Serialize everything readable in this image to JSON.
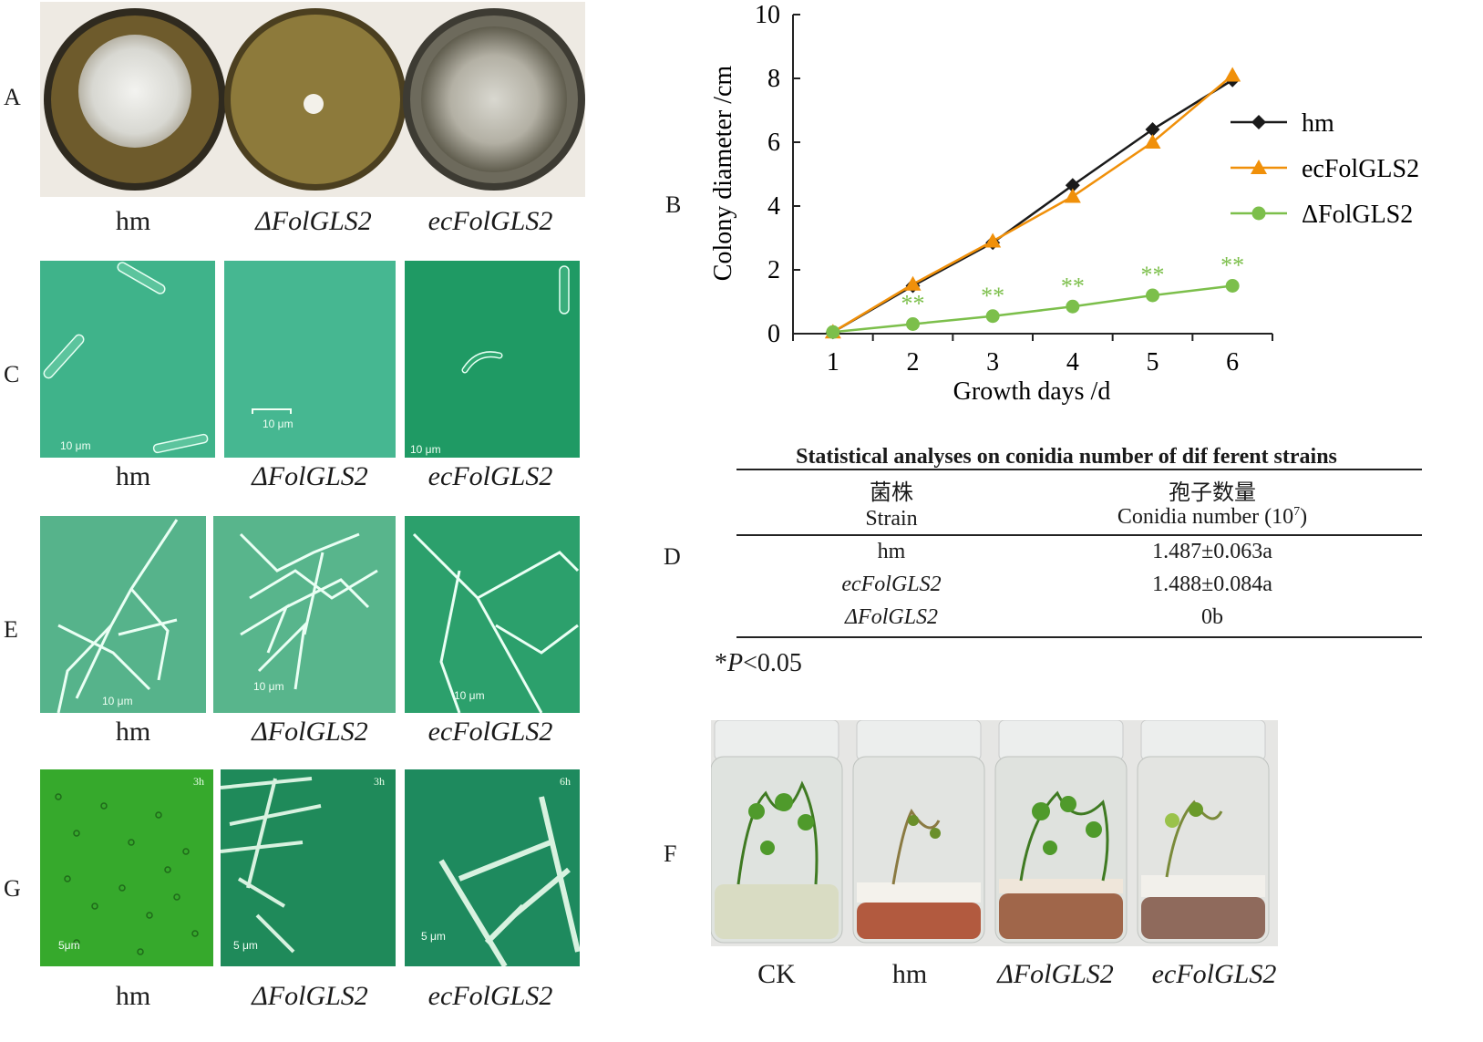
{
  "panel_letters": {
    "a": "A",
    "b": "B",
    "c": "C",
    "d": "D",
    "e": "E",
    "f": "F",
    "g": "G"
  },
  "strains": {
    "hm": "hm",
    "delta": "ΔFolGLS2",
    "ec": "ecFolGLS2",
    "ck": "CK"
  },
  "scale_labels": {
    "ten": "10 μm",
    "five_a": "5μm",
    "five_b": "5 μm",
    "t3h": "3h",
    "t6h": "6h"
  },
  "chart_data": {
    "type": "line",
    "xlabel": "Growth days /d",
    "ylabel": "Colony diameter /cm",
    "x": [
      1,
      2,
      3,
      4,
      5,
      6
    ],
    "xlim": [
      0.5,
      6.5
    ],
    "ylim": [
      0,
      10
    ],
    "yticks": [
      0,
      2,
      4,
      6,
      8,
      10
    ],
    "legend_position": "right",
    "series": [
      {
        "name": "hm",
        "marker": "diamond",
        "color": "#1a1a1a",
        "values": [
          0.05,
          1.5,
          2.85,
          4.65,
          6.4,
          7.95
        ]
      },
      {
        "name": "ecFolGLS2",
        "marker": "triangle",
        "color": "#f0900a",
        "values": [
          0.05,
          1.55,
          2.9,
          4.3,
          6.0,
          8.1
        ]
      },
      {
        "name": "ΔFolGLS2",
        "marker": "circle",
        "color": "#7cbf4b",
        "values": [
          0.05,
          0.3,
          0.55,
          0.85,
          1.2,
          1.5
        ]
      }
    ],
    "annotations": [
      {
        "x": 2,
        "text": "**"
      },
      {
        "x": 3,
        "text": "**"
      },
      {
        "x": 4,
        "text": "**"
      },
      {
        "x": 5,
        "text": "**"
      },
      {
        "x": 6,
        "text": "**"
      }
    ]
  },
  "table": {
    "title": "Statistical analyses on conidia number of dif ferent strains",
    "col1_cn": "菌株",
    "col1_en": "Strain",
    "col2_cn": "孢子数量",
    "col2_en_pre": "Conidia number (10",
    "col2_en_sup": "7",
    "col2_en_post": ")",
    "rows": [
      {
        "strain": "hm",
        "value": "1.487±0.063a"
      },
      {
        "strain": "ecFolGLS2",
        "value": "1.488±0.084a"
      },
      {
        "strain": "ΔFolGLS2",
        "value": "0b"
      }
    ],
    "note_star": "*",
    "note_p": "P",
    "note_rest": "<0.05"
  }
}
